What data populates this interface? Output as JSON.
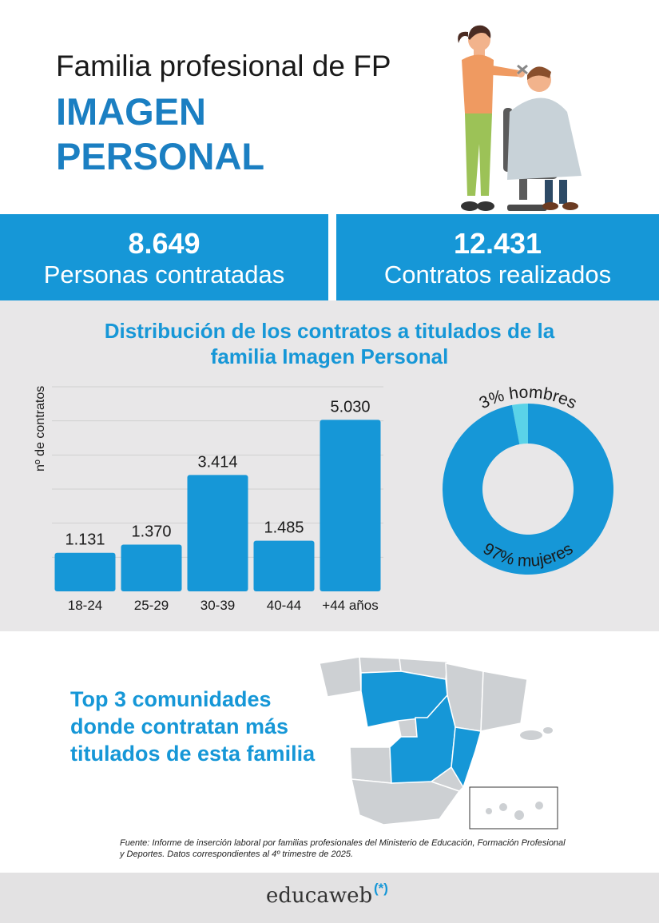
{
  "header": {
    "subtitle": "Familia profesional de FP",
    "title_line1": "IMAGEN",
    "title_line2": "PERSONAL"
  },
  "stats": [
    {
      "value": "8.649",
      "label": "Personas contratadas"
    },
    {
      "value": "12.431",
      "label": "Contratos realizados"
    }
  ],
  "chart_section": {
    "title_line1": "Distribución de los contratos a titulados de la",
    "title_line2": "familia Imagen Personal"
  },
  "chart_data": [
    {
      "type": "bar",
      "categories": [
        "18-24",
        "25-29",
        "30-39",
        "40-44",
        "+44 años"
      ],
      "values": [
        1131,
        1370,
        3414,
        1485,
        5030
      ],
      "value_labels": [
        "1.131",
        "1.370",
        "3.414",
        "1.485",
        "5.030"
      ],
      "ylabel": "nº de contratos",
      "ylim": [
        0,
        6000
      ],
      "grid": true,
      "color": "#1697d7"
    },
    {
      "type": "pie",
      "categories": [
        "hombres",
        "mujeres"
      ],
      "values": [
        3,
        97
      ],
      "labels": [
        "3% hombres",
        "97% mujeres"
      ],
      "colors": [
        "#5ad3e8",
        "#1697d7"
      ],
      "donut": true
    }
  ],
  "map_section": {
    "top3_title": "Top 3 comunidades donde contratan más titulados de esta familia",
    "source": "Fuente: Informe de inserción laboral por familias profesionales del Ministerio de Educación, Formación Profesional y Deportes. Datos correspondientes al 4º trimestre de 2025.",
    "highlight_color": "#1697d7",
    "base_color": "#cdd0d3"
  },
  "footer": {
    "logo_text": "educaweb",
    "logo_mark": "(*)"
  }
}
